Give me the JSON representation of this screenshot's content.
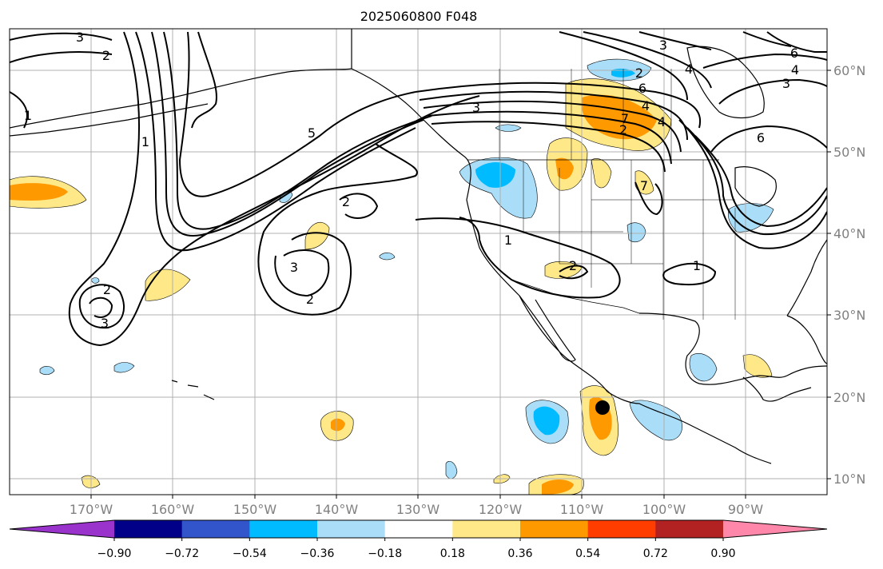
{
  "title": "2025060800 F048",
  "lon_labels": [
    "170°W",
    "160°W",
    "150°W",
    "140°W",
    "130°W",
    "120°W",
    "110°W",
    "100°W",
    "90°W"
  ],
  "lat_labels": [
    "60°N",
    "50°N",
    "40°N",
    "30°N",
    "20°N",
    "10°N"
  ],
  "colorbar": {
    "ticks": [
      "−0.90",
      "−0.72",
      "−0.54",
      "−0.36",
      "−0.18",
      "0.18",
      "0.36",
      "0.54",
      "0.72",
      "0.90"
    ],
    "colors": [
      "#9933cc",
      "#000088",
      "#3355cc",
      "#00bbff",
      "#aaddf7",
      "#ffffff",
      "#ffe888",
      "#ff9900",
      "#ff3d00",
      "#b22222",
      "#ff88aa"
    ]
  },
  "contour_labels": [
    "2",
    "3",
    "1",
    "1",
    "2",
    "3",
    "2",
    "3",
    "5",
    "2",
    "3",
    "2",
    "1",
    "2",
    "1",
    "3",
    "4",
    "2",
    "6",
    "7",
    "4",
    "6",
    "3",
    "6",
    "4",
    "4",
    "7"
  ],
  "marker": {
    "name": "point",
    "lon": -107.5,
    "lat": 18.5
  }
}
